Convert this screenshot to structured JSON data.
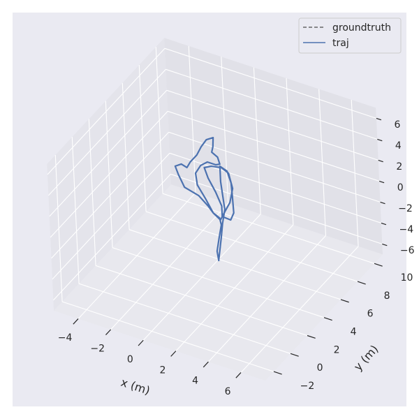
{
  "chart_data": {
    "type": "line",
    "projection": "3d",
    "xlabel": "x (m)",
    "ylabel": "y (m)",
    "xlim": [
      -5.5,
      7.5
    ],
    "ylim": [
      -3,
      11
    ],
    "zlim": [
      -7,
      7
    ],
    "xticks": [
      -4,
      -2,
      0,
      2,
      4,
      6
    ],
    "yticks": [
      -2,
      0,
      2,
      4,
      6,
      8,
      10
    ],
    "zticks": [
      -6,
      -4,
      -2,
      0,
      2,
      4,
      6
    ],
    "grid": true,
    "legend": {
      "placement": "top-right",
      "entries": [
        "groundtruth",
        "traj"
      ]
    },
    "colors": {
      "groundtruth": "#666666",
      "traj": "#4c72b0",
      "figure_bg": "#eaeaf2",
      "pane": "#e3e3ea",
      "grid": "#ffffff"
    },
    "series": [
      {
        "name": "groundtruth",
        "style": "dashed",
        "points": "same as traj"
      },
      {
        "name": "traj",
        "style": "solid",
        "points": [
          [
            1.1,
            4,
            -4.9
          ],
          [
            1.02,
            4,
            -3.99
          ],
          [
            1.19,
            4,
            -2.59
          ],
          [
            1.36,
            4,
            -1.31
          ],
          [
            1.27,
            4,
            -0.69
          ],
          [
            0.89,
            4,
            -0.41
          ],
          [
            0.59,
            4,
            0.1
          ],
          [
            0.03,
            4,
            0.81
          ],
          [
            -0.83,
            4,
            1.17
          ],
          [
            -1.17,
            4,
            2.19
          ],
          [
            -1.35,
            4,
            2.91
          ],
          [
            -0.96,
            4,
            3.31
          ],
          [
            -0.62,
            4,
            3.15
          ],
          [
            -0.4,
            4,
            3.79
          ],
          [
            0.03,
            4,
            4.68
          ],
          [
            0.33,
            4,
            5.63
          ],
          [
            0.67,
            4,
            6.47
          ],
          [
            1.1,
            4,
            6.89
          ],
          [
            1.06,
            4,
            6.01
          ],
          [
            0.97,
            4,
            5.43
          ],
          [
            1.32,
            4,
            5.14
          ],
          [
            1.44,
            4,
            4.53
          ],
          [
            1.19,
            4,
            4.34
          ],
          [
            0.67,
            4,
            4.34
          ],
          [
            0.24,
            4,
            3.79
          ],
          [
            -0.1,
            4,
            2.88
          ],
          [
            -0.02,
            4,
            1.79
          ],
          [
            0.46,
            4,
            0.7
          ],
          [
            0.89,
            4,
            -0.41
          ],
          [
            1.32,
            4,
            -0.86
          ],
          [
            1.62,
            4,
            0.09
          ],
          [
            1.96,
            4,
            1.13
          ],
          [
            2.17,
            4,
            2.58
          ],
          [
            1.96,
            4,
            3.93
          ],
          [
            1.53,
            4,
            4.25
          ],
          [
            0.89,
            4,
            4.05
          ],
          [
            0.46,
            4,
            3.7
          ],
          [
            0.67,
            4,
            2.81
          ],
          [
            1.1,
            4,
            1.69
          ],
          [
            1.44,
            4,
            0.53
          ],
          [
            1.44,
            4,
            -0.47
          ],
          [
            1.96,
            4,
            -0.53
          ],
          [
            2.17,
            4,
            0.25
          ],
          [
            2.13,
            4,
            1.89
          ],
          [
            2.09,
            4,
            3.07
          ],
          [
            1.87,
            4,
            4.09
          ],
          [
            1.44,
            4,
            4.33
          ],
          [
            1.44,
            4,
            2.87
          ],
          [
            1.53,
            4,
            1.58
          ],
          [
            1.62,
            4,
            0.29
          ],
          [
            1.44,
            4,
            -1.13
          ],
          [
            1.32,
            4,
            -2.53
          ],
          [
            1.1,
            4,
            -4.77
          ]
        ]
      }
    ]
  }
}
